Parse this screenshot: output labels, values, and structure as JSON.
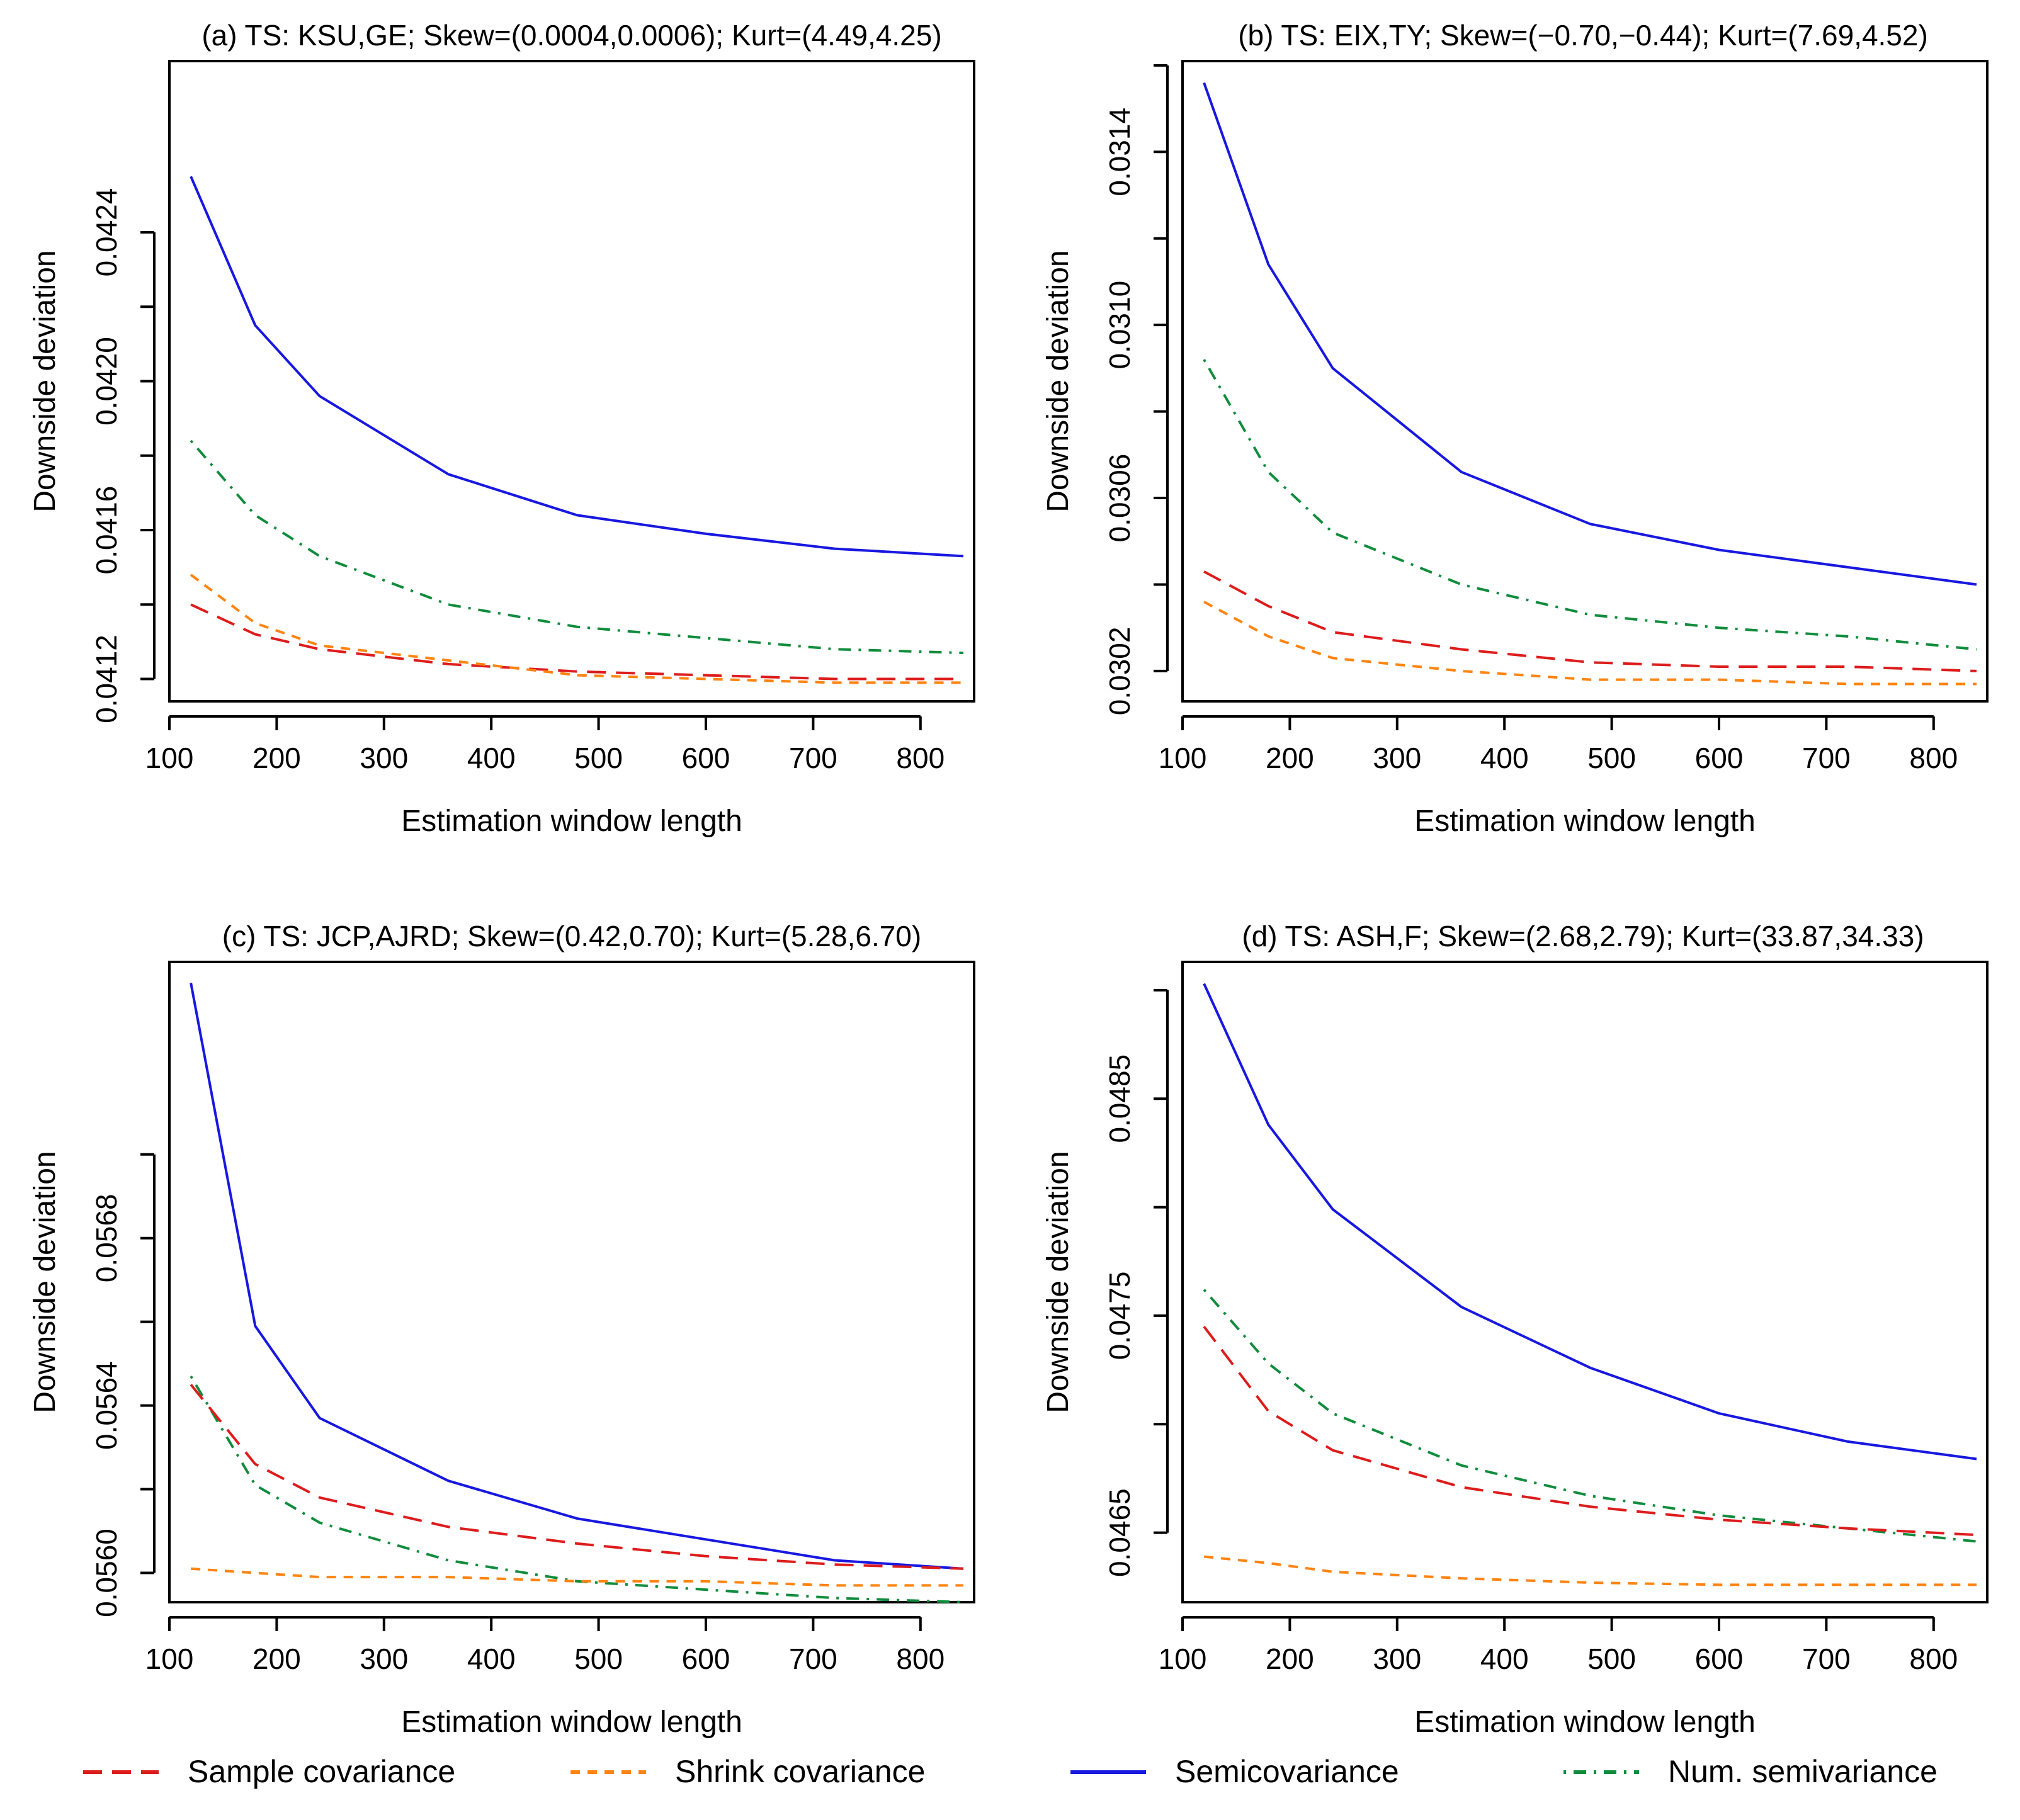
{
  "chart_data": {
    "type": "line",
    "panels": [
      {
        "title": "(a) TS: KSU,GE; Skew=(0.0004,0.0006); Kurt=(4.49,4.25)",
        "xlabel": "Estimation window length",
        "ylabel": "Downside deviation",
        "xlim": [
          100,
          850
        ],
        "ylim": [
          0.04114,
          0.04286
        ],
        "xticks": [
          100,
          200,
          300,
          400,
          500,
          600,
          700,
          800
        ],
        "xtick_labels": [
          "100",
          "200",
          "300",
          "400",
          "500",
          "600",
          "700",
          "800"
        ],
        "yticks": [
          0.0412,
          0.0414,
          0.0416,
          0.0418,
          0.042,
          0.0422,
          0.0424
        ],
        "ytick_labels": [
          "0.0412",
          "",
          "0.0416",
          "",
          "0.0420",
          "",
          "0.0424"
        ],
        "x": [
          120,
          180,
          240,
          360,
          480,
          600,
          720,
          840
        ],
        "series": [
          {
            "name": "Semicovariance",
            "values": [
              0.04255,
              0.04215,
              0.04196,
              0.04175,
              0.04164,
              0.04159,
              0.04155,
              0.04153
            ]
          },
          {
            "name": "Num. semivariance",
            "values": [
              0.04184,
              0.04164,
              0.04153,
              0.0414,
              0.04134,
              0.04131,
              0.04128,
              0.04127
            ]
          },
          {
            "name": "Shrink covariance",
            "values": [
              0.04148,
              0.04135,
              0.04129,
              0.04125,
              0.04121,
              0.0412,
              0.04119,
              0.04119
            ]
          },
          {
            "name": "Sample covariance",
            "values": [
              0.0414,
              0.04132,
              0.04128,
              0.04124,
              0.04122,
              0.04121,
              0.0412,
              0.0412
            ]
          }
        ]
      },
      {
        "title": "(b) TS: EIX,TY; Skew=(−0.70,−0.44); Kurt=(7.69,4.52)",
        "xlabel": "Estimation window length",
        "ylabel": "Downside deviation",
        "xlim": [
          100,
          850
        ],
        "ylim": [
          0.03013,
          0.03161
        ],
        "xticks": [
          100,
          200,
          300,
          400,
          500,
          600,
          700,
          800
        ],
        "xtick_labels": [
          "100",
          "200",
          "300",
          "400",
          "500",
          "600",
          "700",
          "800"
        ],
        "yticks": [
          0.0302,
          0.0304,
          0.0306,
          0.0308,
          0.031,
          0.0312,
          0.0314,
          0.0316
        ],
        "ytick_labels": [
          "0.0302",
          "",
          "0.0306",
          "",
          "0.0310",
          "",
          "0.0314",
          ""
        ],
        "x": [
          120,
          180,
          240,
          360,
          480,
          600,
          720,
          840
        ],
        "series": [
          {
            "name": "Semicovariance",
            "values": [
              0.03156,
              0.03114,
              0.0309,
              0.03066,
              0.03054,
              0.03048,
              0.03044,
              0.0304
            ]
          },
          {
            "name": "Num. semivariance",
            "values": [
              0.03092,
              0.03066,
              0.03052,
              0.0304,
              0.03033,
              0.0303,
              0.03028,
              0.03025
            ]
          },
          {
            "name": "Sample covariance",
            "values": [
              0.03043,
              0.03035,
              0.03029,
              0.03025,
              0.03022,
              0.03021,
              0.03021,
              0.0302
            ]
          },
          {
            "name": "Shrink covariance",
            "values": [
              0.03036,
              0.03028,
              0.03023,
              0.0302,
              0.03018,
              0.03018,
              0.03017,
              0.03017
            ]
          }
        ]
      },
      {
        "title": "(c) TS: JCP,AJRD; Skew=(0.42,0.70); Kurt=(5.28,6.70)",
        "xlabel": "Estimation window length",
        "ylabel": "Downside deviation",
        "xlim": [
          100,
          850
        ],
        "ylim": [
          0.05593,
          0.05746
        ],
        "xticks": [
          100,
          200,
          300,
          400,
          500,
          600,
          700,
          800
        ],
        "xtick_labels": [
          "100",
          "200",
          "300",
          "400",
          "500",
          "600",
          "700",
          "800"
        ],
        "yticks": [
          0.056,
          0.0562,
          0.0564,
          0.0566,
          0.0568,
          0.057
        ],
        "ytick_labels": [
          "0.0560",
          "",
          "0.0564",
          "",
          "0.0568",
          ""
        ],
        "x": [
          120,
          180,
          240,
          360,
          480,
          600,
          720,
          840
        ],
        "series": [
          {
            "name": "Semicovariance",
            "values": [
              0.05741,
              0.05659,
              0.05637,
              0.05622,
              0.05613,
              0.05608,
              0.05603,
              0.05601
            ]
          },
          {
            "name": "Num. semivariance",
            "values": [
              0.05647,
              0.05621,
              0.05612,
              0.05603,
              0.05598,
              0.05596,
              0.05594,
              0.05593
            ]
          },
          {
            "name": "Sample covariance",
            "values": [
              0.05645,
              0.05626,
              0.05618,
              0.05611,
              0.05607,
              0.05604,
              0.05602,
              0.05601
            ]
          },
          {
            "name": "Shrink covariance",
            "values": [
              0.05601,
              0.056,
              0.05599,
              0.05599,
              0.05598,
              0.05598,
              0.05597,
              0.05597
            ]
          }
        ]
      },
      {
        "title": "(d) TS: ASH,F; Skew=(2.68,2.79); Kurt=(33.87,34.33)",
        "xlabel": "Estimation window length",
        "ylabel": "Downside deviation",
        "xlim": [
          100,
          850
        ],
        "ylim": [
          0.04618,
          0.04913
        ],
        "xticks": [
          100,
          200,
          300,
          400,
          500,
          600,
          700,
          800
        ],
        "xtick_labels": [
          "100",
          "200",
          "300",
          "400",
          "500",
          "600",
          "700",
          "800"
        ],
        "yticks": [
          0.0465,
          0.047,
          0.0475,
          0.048,
          0.0485,
          0.049
        ],
        "ytick_labels": [
          "0.0465",
          "",
          "0.0475",
          "",
          "0.0485",
          ""
        ],
        "x": [
          120,
          180,
          240,
          360,
          480,
          600,
          720,
          840
        ],
        "series": [
          {
            "name": "Semicovariance",
            "values": [
              0.04903,
              0.04838,
              0.04799,
              0.04754,
              0.04726,
              0.04705,
              0.04692,
              0.04684
            ]
          },
          {
            "name": "Num. semivariance",
            "values": [
              0.04762,
              0.04728,
              0.04705,
              0.04681,
              0.04667,
              0.04658,
              0.04652,
              0.04646
            ]
          },
          {
            "name": "Sample covariance",
            "values": [
              0.04745,
              0.04706,
              0.04688,
              0.04671,
              0.04662,
              0.04656,
              0.04652,
              0.04649
            ]
          },
          {
            "name": "Shrink covariance",
            "values": [
              0.04639,
              0.04636,
              0.04632,
              0.04629,
              0.04627,
              0.04626,
              0.04626,
              0.04626
            ]
          }
        ]
      }
    ],
    "legend": {
      "position": "bottom",
      "entries": [
        "Sample covariance",
        "Shrink covariance",
        "Semicovariance",
        "Num. semivariance"
      ]
    },
    "styles": {
      "Sample covariance": {
        "color": "#dd1c1c",
        "dash": "dashed"
      },
      "Shrink covariance": {
        "color": "#ff8411",
        "dash": "short-dashed"
      },
      "Semicovariance": {
        "color": "#1818e0",
        "dash": "solid"
      },
      "Num. semivariance": {
        "color": "#108c3c",
        "dash": "dot-dash"
      }
    }
  }
}
